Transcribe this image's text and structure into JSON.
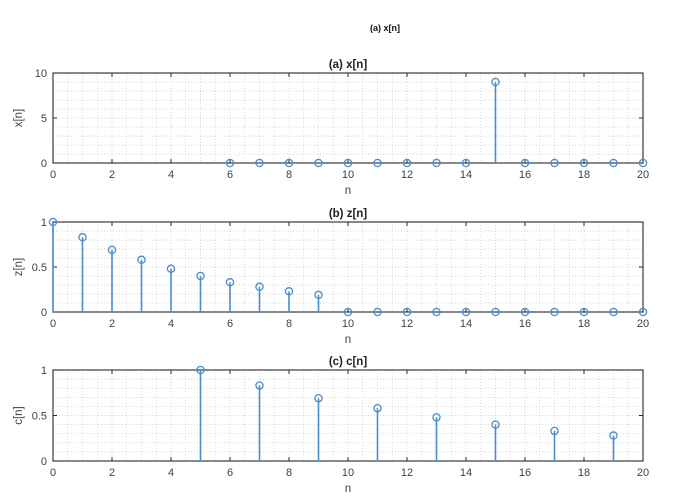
{
  "figure": {
    "suptitle": "(a) x[n]",
    "stem_color": "#4a8ccc",
    "axis_color": "#262626",
    "grid_color": "#c8c8c8"
  },
  "chart_data": [
    {
      "type": "stem",
      "title": "(a) x[n]",
      "xlabel": "n",
      "ylabel": "x[n]",
      "xlim": [
        0,
        20
      ],
      "ylim": [
        0,
        10
      ],
      "xticks": [
        0,
        2,
        4,
        6,
        8,
        10,
        12,
        14,
        16,
        18,
        20
      ],
      "yticks": [
        0,
        5,
        10
      ],
      "grid": "minor-dotted",
      "x": [
        6,
        7,
        8,
        9,
        10,
        11,
        12,
        13,
        14,
        15,
        16,
        17,
        18,
        19,
        20
      ],
      "values": [
        0,
        0,
        0,
        0,
        0,
        0,
        0,
        0,
        0,
        9,
        0,
        0,
        0,
        0,
        0
      ]
    },
    {
      "type": "stem",
      "title": "(b) z[n]",
      "xlabel": "n",
      "ylabel": "z[n]",
      "xlim": [
        0,
        20
      ],
      "ylim": [
        0,
        1
      ],
      "xticks": [
        0,
        2,
        4,
        6,
        8,
        10,
        12,
        14,
        16,
        18,
        20
      ],
      "yticks": [
        0,
        0.5,
        1
      ],
      "grid": "minor-dotted",
      "x": [
        0,
        1,
        2,
        3,
        4,
        5,
        6,
        7,
        8,
        9,
        10,
        11,
        12,
        13,
        14,
        15,
        16,
        17,
        18,
        19,
        20
      ],
      "values": [
        1,
        0.83,
        0.69,
        0.58,
        0.48,
        0.4,
        0.33,
        0.28,
        0.23,
        0.19,
        0,
        0,
        0,
        0,
        0,
        0,
        0,
        0,
        0,
        0,
        0
      ]
    },
    {
      "type": "stem",
      "title": "(c) c[n]",
      "xlabel": "n",
      "ylabel": "c[n]",
      "xlim": [
        0,
        20
      ],
      "ylim": [
        0,
        1
      ],
      "xticks": [
        0,
        2,
        4,
        6,
        8,
        10,
        12,
        14,
        16,
        18,
        20
      ],
      "yticks": [
        0,
        0.5,
        1
      ],
      "grid": "minor-dotted",
      "x": [
        5,
        7,
        9,
        11,
        13,
        15,
        17,
        19
      ],
      "values": [
        1,
        0.83,
        0.69,
        0.58,
        0.48,
        0.4,
        0.33,
        0.28
      ]
    }
  ]
}
